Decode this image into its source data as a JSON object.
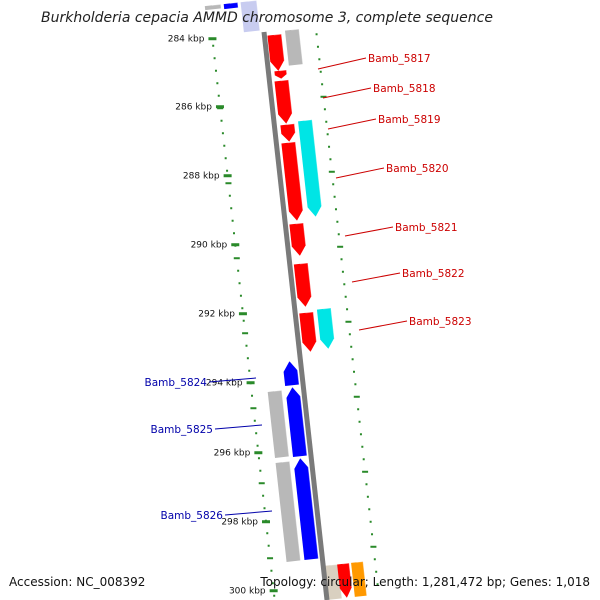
{
  "title": "Burkholderia cepacia AMMD chromosome 3, complete sequence",
  "footer": {
    "accession": "Accession: NC_008392",
    "topology": "Topology: circular; Length: 1,281,472 bp; Genes: 1,018"
  },
  "colors": {
    "plus_cds": "#ff0000",
    "minus_cds": "#0000ff",
    "plus_label": "#cc0000",
    "minus_label": "#0000aa",
    "rna_like": "#00e5e5",
    "gray_feature": "#b8b8b8",
    "backbone": "#7a7a7a",
    "tick": "#2a8a2a",
    "orange_feature": "#ff9900"
  },
  "ticks": [
    "284 kbp",
    "286 kbp",
    "288 kbp",
    "290 kbp",
    "292 kbp",
    "294 kbp",
    "296 kbp",
    "298 kbp",
    "300 kbp"
  ],
  "genes_plus": [
    "Bamb_5817",
    "Bamb_5818",
    "Bamb_5819",
    "Bamb_5820",
    "Bamb_5821",
    "Bamb_5822",
    "Bamb_5823"
  ],
  "genes_minus": [
    "Bamb_5824",
    "Bamb_5825",
    "Bamb_5826"
  ]
}
